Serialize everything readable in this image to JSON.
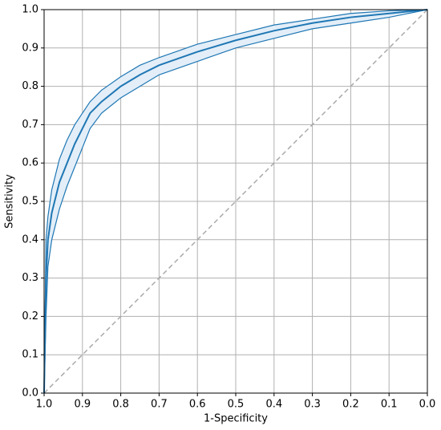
{
  "chart_data": {
    "type": "line",
    "xlabel": "1-Specificity",
    "ylabel": "Sensitivity",
    "x": [
      1.0,
      0.995,
      0.99,
      0.98,
      0.96,
      0.94,
      0.92,
      0.9,
      0.88,
      0.85,
      0.8,
      0.75,
      0.7,
      0.6,
      0.5,
      0.4,
      0.3,
      0.2,
      0.1,
      0.0
    ],
    "series": [
      {
        "color": "#1f77b4",
        "values": [
          0,
          0.3,
          0.4,
          0.47,
          0.55,
          0.6,
          0.65,
          0.69,
          0.73,
          0.76,
          0.8,
          0.83,
          0.855,
          0.89,
          0.92,
          0.945,
          0.965,
          0.98,
          0.99,
          1.0
        ]
      },
      {
        "color": "#1f77b4",
        "values": [
          0,
          0.4,
          0.46,
          0.53,
          0.61,
          0.66,
          0.7,
          0.73,
          0.76,
          0.79,
          0.825,
          0.855,
          0.875,
          0.91,
          0.935,
          0.96,
          0.975,
          0.99,
          0.997,
          1.0
        ]
      },
      {
        "color": "#1f77b4",
        "values": [
          0,
          0.2,
          0.33,
          0.4,
          0.48,
          0.54,
          0.59,
          0.64,
          0.69,
          0.73,
          0.77,
          0.8,
          0.83,
          0.865,
          0.9,
          0.925,
          0.95,
          0.965,
          0.98,
          1.0
        ]
      }
    ],
    "band_fill": "#e3eef8",
    "diagonal_color": "#aaaaaa",
    "xlim": [
      1,
      0
    ],
    "ylim": [
      0,
      1
    ],
    "xticks": [
      {
        "value": 1,
        "label": "1.0"
      },
      0.9,
      0.8,
      0.7,
      0.6,
      0.5,
      0.4,
      0.3,
      0.2,
      0.1,
      {
        "value": 0,
        "label": "0.0"
      }
    ],
    "yticks": [
      {
        "value": 0,
        "label": "0.0"
      },
      0.1,
      0.2,
      0.3,
      0.4,
      0.5,
      0.6,
      0.7,
      0.8,
      0.9,
      {
        "value": 1,
        "label": "1.0"
      }
    ],
    "grid": true
  }
}
